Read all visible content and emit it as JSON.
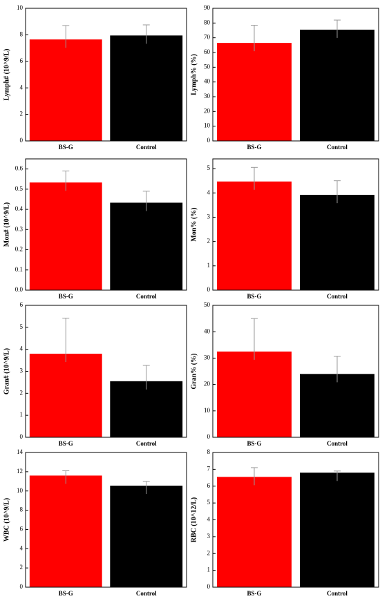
{
  "chart_data": [
    {
      "type": "bar",
      "ylabel": "Lymph# (10^9/L)",
      "categories": [
        "BS-G",
        "Control"
      ],
      "values": [
        7.65,
        7.95
      ],
      "errors": [
        1.05,
        0.8
      ],
      "colors": [
        "#ff0000",
        "#000000"
      ],
      "ylim": [
        0,
        10
      ],
      "yticks": [
        0,
        2,
        4,
        6,
        8,
        10
      ]
    },
    {
      "type": "bar",
      "ylabel": "Lymph% (%)",
      "categories": [
        "BS-G",
        "Control"
      ],
      "values": [
        66.5,
        75.5
      ],
      "errors": [
        12,
        6.5
      ],
      "colors": [
        "#ff0000",
        "#000000"
      ],
      "ylim": [
        0,
        90
      ],
      "yticks": [
        0,
        10,
        20,
        30,
        40,
        50,
        60,
        70,
        80,
        90
      ]
    },
    {
      "type": "bar",
      "ylabel": "Mon# (10^9/L)",
      "categories": [
        "BS-G",
        "Control"
      ],
      "values": [
        0.533,
        0.433
      ],
      "errors": [
        0.057,
        0.057
      ],
      "colors": [
        "#ff0000",
        "#000000"
      ],
      "ylim": [
        0,
        0.65
      ],
      "yticks": [
        {
          "value": 0,
          "label": "0.0"
        },
        0.1,
        0.2,
        0.3,
        0.4,
        0.5,
        0.6
      ]
    },
    {
      "type": "bar",
      "ylabel": "Mon% (%)",
      "categories": [
        "BS-G",
        "Control"
      ],
      "values": [
        4.47,
        3.92
      ],
      "errors": [
        0.58,
        0.58
      ],
      "colors": [
        "#ff0000",
        "#000000"
      ],
      "ylim": [
        0,
        5.4
      ],
      "yticks": [
        0,
        1,
        2,
        3,
        4,
        5
      ]
    },
    {
      "type": "bar",
      "ylabel": "Gran# (10^9/L)",
      "categories": [
        "BS-G",
        "Control"
      ],
      "values": [
        3.8,
        2.55
      ],
      "errors": [
        1.62,
        0.72
      ],
      "colors": [
        "#ff0000",
        "#000000"
      ],
      "ylim": [
        0,
        6
      ],
      "yticks": [
        0,
        1,
        2,
        3,
        4,
        5,
        6
      ]
    },
    {
      "type": "bar",
      "ylabel": "Gran% (%)",
      "categories": [
        "BS-G",
        "Control"
      ],
      "values": [
        32.5,
        24
      ],
      "errors": [
        12.5,
        6.7
      ],
      "colors": [
        "#ff0000",
        "#000000"
      ],
      "ylim": [
        0,
        50
      ],
      "yticks": [
        0,
        10,
        20,
        30,
        40,
        50
      ]
    },
    {
      "type": "bar",
      "ylabel": "WBC (10^9/L)",
      "categories": [
        "BS-G",
        "Control"
      ],
      "values": [
        11.6,
        10.55
      ],
      "errors": [
        0.5,
        0.45
      ],
      "colors": [
        "#ff0000",
        "#000000"
      ],
      "ylim": [
        0,
        14
      ],
      "yticks": [
        0,
        2,
        4,
        6,
        8,
        10,
        12,
        14
      ]
    },
    {
      "type": "bar",
      "ylabel": "RBC (10^12/L)",
      "categories": [
        "BS-G",
        "Control"
      ],
      "values": [
        6.55,
        6.8
      ],
      "errors": [
        0.55,
        0.1
      ],
      "colors": [
        "#ff0000",
        "#000000"
      ],
      "ylim": [
        0,
        8
      ],
      "yticks": [
        0,
        1,
        2,
        3,
        4,
        5,
        6,
        7,
        8
      ]
    }
  ]
}
